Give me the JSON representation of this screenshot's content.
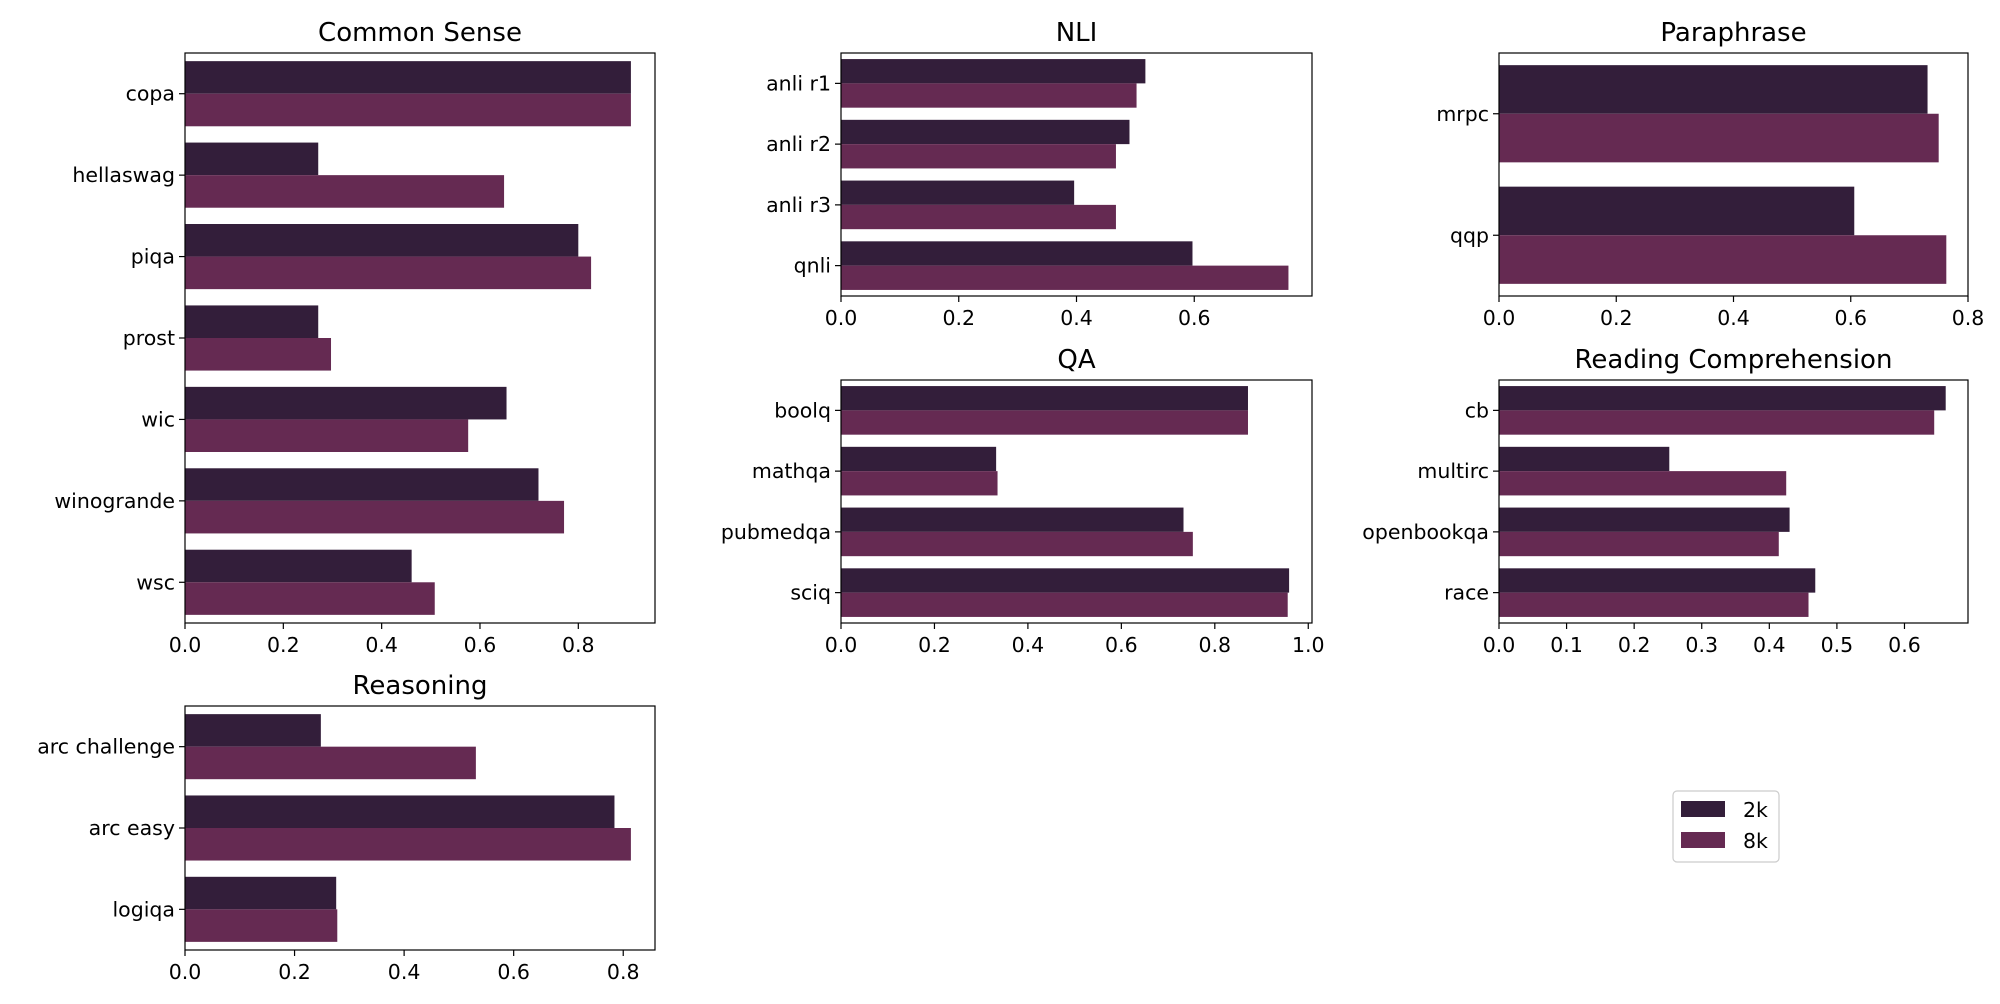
{
  "colors": {
    "2k": "#331e3a",
    "8k": "#652a52"
  },
  "legend": {
    "placement": "lower-right",
    "entries": [
      "2k",
      "8k"
    ]
  },
  "chart_data": [
    {
      "type": "bar",
      "orientation": "horizontal",
      "title": "Common Sense",
      "categories": [
        "copa",
        "hellaswag",
        "piqa",
        "prost",
        "wic",
        "winogrande",
        "wsc"
      ],
      "series": [
        {
          "name": "2k",
          "values": [
            0.907,
            0.271,
            0.8,
            0.271,
            0.654,
            0.719,
            0.461
          ]
        },
        {
          "name": "8k",
          "values": [
            0.907,
            0.649,
            0.826,
            0.297,
            0.576,
            0.771,
            0.508
          ]
        }
      ],
      "xlim": [
        0,
        0.956
      ],
      "xticks": [
        "0.0",
        "0.2",
        "0.4",
        "0.6",
        "0.8"
      ],
      "grid": false
    },
    {
      "type": "bar",
      "orientation": "horizontal",
      "title": "NLI",
      "categories": [
        "anli r1",
        "anli r2",
        "anli r3",
        "qnli"
      ],
      "series": [
        {
          "name": "2k",
          "values": [
            0.517,
            0.49,
            0.396,
            0.597
          ]
        },
        {
          "name": "8k",
          "values": [
            0.502,
            0.467,
            0.467,
            0.76
          ]
        }
      ],
      "xlim": [
        0,
        0.8
      ],
      "xticks": [
        "0.0",
        "0.2",
        "0.4",
        "0.6"
      ],
      "grid": false
    },
    {
      "type": "bar",
      "orientation": "horizontal",
      "title": "Paraphrase",
      "categories": [
        "mrpc",
        "qqp"
      ],
      "series": [
        {
          "name": "2k",
          "values": [
            0.731,
            0.606
          ]
        },
        {
          "name": "8k",
          "values": [
            0.75,
            0.763
          ]
        }
      ],
      "xlim": [
        0,
        0.8
      ],
      "xticks": [
        "0.0",
        "0.2",
        "0.4",
        "0.6",
        "0.8"
      ],
      "grid": false
    },
    {
      "type": "bar",
      "orientation": "horizontal",
      "title": "QA",
      "categories": [
        "boolq",
        "mathqa",
        "pubmedqa",
        "sciq"
      ],
      "series": [
        {
          "name": "2k",
          "values": [
            0.871,
            0.332,
            0.733,
            0.959
          ]
        },
        {
          "name": "8k",
          "values": [
            0.871,
            0.335,
            0.753,
            0.956
          ]
        }
      ],
      "xlim": [
        0,
        1.008
      ],
      "xticks": [
        "0.0",
        "0.2",
        "0.4",
        "0.6",
        "0.8",
        "1.0"
      ],
      "grid": false
    },
    {
      "type": "bar",
      "orientation": "horizontal",
      "title": "Reading Comprehension",
      "categories": [
        "cb",
        "multirc",
        "openbookqa",
        "race"
      ],
      "series": [
        {
          "name": "2k",
          "values": [
            0.661,
            0.252,
            0.43,
            0.468
          ]
        },
        {
          "name": "8k",
          "values": [
            0.644,
            0.425,
            0.414,
            0.458
          ]
        }
      ],
      "xlim": [
        0,
        0.694
      ],
      "xticks": [
        "0.0",
        "0.1",
        "0.2",
        "0.3",
        "0.4",
        "0.5",
        "0.6"
      ],
      "grid": false
    },
    {
      "type": "bar",
      "orientation": "horizontal",
      "title": "Reasoning",
      "categories": [
        "arc challenge",
        "arc easy",
        "logiqa"
      ],
      "series": [
        {
          "name": "2k",
          "values": [
            0.248,
            0.784,
            0.276
          ]
        },
        {
          "name": "8k",
          "values": [
            0.531,
            0.814,
            0.278
          ]
        }
      ],
      "xlim": [
        0,
        0.858
      ],
      "xticks": [
        "0.0",
        "0.2",
        "0.4",
        "0.6",
        "0.8"
      ],
      "grid": false
    }
  ]
}
